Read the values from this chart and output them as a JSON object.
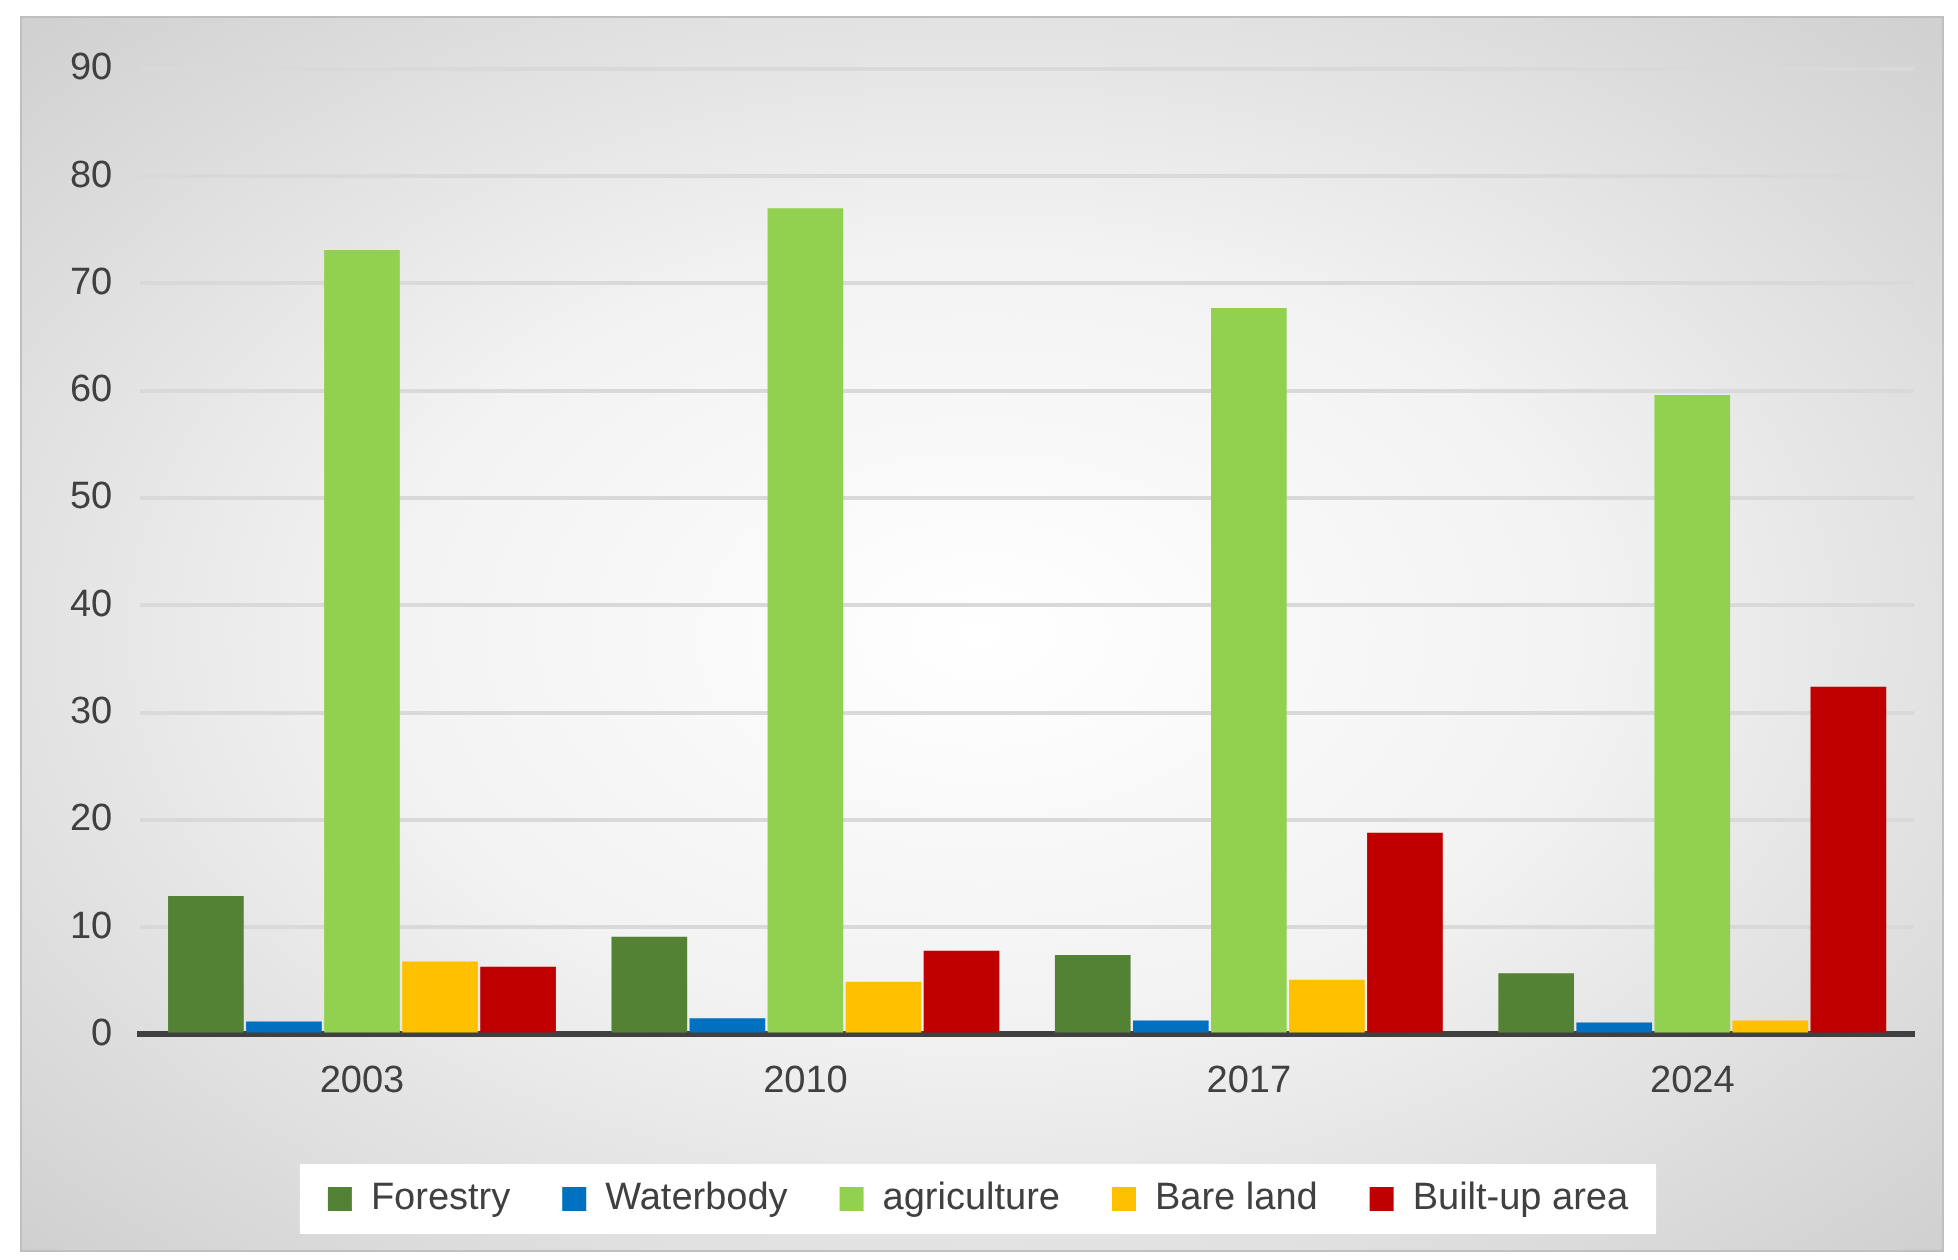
{
  "chart_data": {
    "type": "bar",
    "categories": [
      "2003",
      "2010",
      "2017",
      "2024"
    ],
    "series": [
      {
        "name": "Forestry",
        "color": "#548235",
        "values": [
          12.9,
          9.1,
          7.4,
          5.7
        ]
      },
      {
        "name": "Waterbody",
        "color": "#0070c0",
        "values": [
          1.2,
          1.5,
          1.3,
          1.1
        ]
      },
      {
        "name": "agriculture",
        "color": "#92d050",
        "values": [
          73.1,
          77.0,
          67.7,
          59.6
        ]
      },
      {
        "name": "Bare land",
        "color": "#ffc000",
        "values": [
          6.8,
          4.9,
          5.1,
          1.3
        ]
      },
      {
        "name": "Built-up area",
        "color": "#c00000",
        "values": [
          6.3,
          7.8,
          18.8,
          32.4
        ]
      }
    ],
    "ylim": [
      0,
      90
    ],
    "yticks": [
      0,
      10,
      20,
      30,
      40,
      50,
      60,
      70,
      80,
      90
    ],
    "grid": "y",
    "legend": "bottom"
  }
}
